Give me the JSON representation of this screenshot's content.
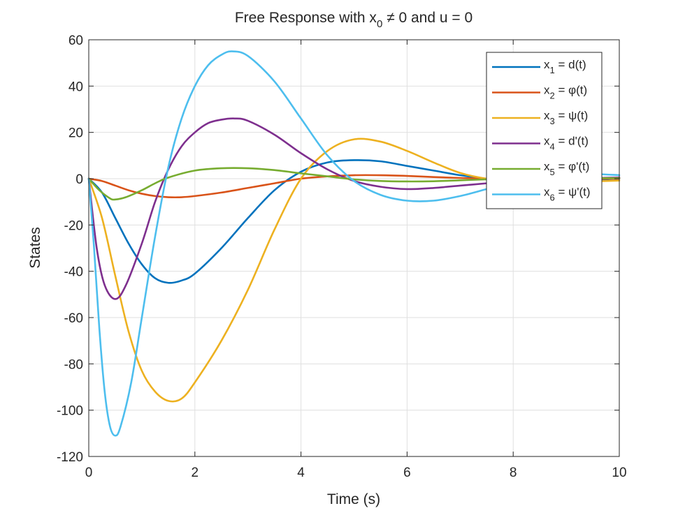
{
  "chart_data": {
    "type": "line",
    "title": {
      "prefix": "Free Response with x",
      "sub": "0",
      "suffix": " ≠ 0 and u = 0"
    },
    "xlabel": "Time (s)",
    "ylabel": "States",
    "xlim": [
      0,
      10
    ],
    "ylim": [
      -120,
      60
    ],
    "xticks": [
      0,
      2,
      4,
      6,
      8,
      10
    ],
    "yticks": [
      -120,
      -100,
      -80,
      -60,
      -40,
      -20,
      0,
      20,
      40,
      60
    ],
    "xtick_labels": [
      "0",
      "2",
      "4",
      "6",
      "8",
      "10"
    ],
    "ytick_labels": [
      "-120",
      "-100",
      "-80",
      "-60",
      "-40",
      "-20",
      "0",
      "20",
      "40",
      "60"
    ],
    "grid": true,
    "legend_position": "top-right",
    "series": [
      {
        "name": "x1 = d(t)",
        "label": {
          "base": "x",
          "sub": "1",
          "rest": " = d(t)"
        },
        "color": "#0072BD",
        "points": [
          [
            0,
            0
          ],
          [
            0.25,
            -6
          ],
          [
            0.5,
            -17
          ],
          [
            0.75,
            -28
          ],
          [
            1.0,
            -37
          ],
          [
            1.25,
            -43
          ],
          [
            1.5,
            -45
          ],
          [
            1.75,
            -44
          ],
          [
            2.0,
            -41
          ],
          [
            2.5,
            -30
          ],
          [
            3.0,
            -17
          ],
          [
            3.5,
            -5
          ],
          [
            4.0,
            3
          ],
          [
            4.5,
            7
          ],
          [
            5.0,
            8
          ],
          [
            5.5,
            7.5
          ],
          [
            6.0,
            5.5
          ],
          [
            6.5,
            3.5
          ],
          [
            7.0,
            1.5
          ],
          [
            7.5,
            0
          ],
          [
            8.0,
            -0.8
          ],
          [
            8.5,
            -1.2
          ],
          [
            9.0,
            -1
          ],
          [
            9.5,
            -0.5
          ],
          [
            10.0,
            0
          ]
        ]
      },
      {
        "name": "x2 = φ(t)",
        "label": {
          "base": "x",
          "sub": "2",
          "rest": " = φ(t)"
        },
        "color": "#D95319",
        "points": [
          [
            0,
            0
          ],
          [
            0.25,
            -1
          ],
          [
            0.5,
            -3
          ],
          [
            0.75,
            -5
          ],
          [
            1.0,
            -6.5
          ],
          [
            1.25,
            -7.5
          ],
          [
            1.5,
            -8
          ],
          [
            1.75,
            -8
          ],
          [
            2.0,
            -7.5
          ],
          [
            2.5,
            -6
          ],
          [
            3.0,
            -4
          ],
          [
            3.5,
            -2
          ],
          [
            4.0,
            0
          ],
          [
            4.5,
            1
          ],
          [
            5.0,
            1.5
          ],
          [
            5.5,
            1.5
          ],
          [
            6.0,
            1.2
          ],
          [
            6.5,
            0.7
          ],
          [
            7.0,
            0.3
          ],
          [
            7.5,
            0
          ],
          [
            8.0,
            -0.3
          ],
          [
            8.5,
            -0.4
          ],
          [
            9.0,
            -0.3
          ],
          [
            9.5,
            -0.1
          ],
          [
            10.0,
            0
          ]
        ]
      },
      {
        "name": "x3 = ψ(t)",
        "label": {
          "base": "x",
          "sub": "3",
          "rest": " = ψ(t)"
        },
        "color": "#EDB120",
        "points": [
          [
            0,
            0
          ],
          [
            0.25,
            -17
          ],
          [
            0.5,
            -42
          ],
          [
            0.75,
            -66
          ],
          [
            1.0,
            -83
          ],
          [
            1.25,
            -92
          ],
          [
            1.5,
            -96
          ],
          [
            1.75,
            -95
          ],
          [
            2.0,
            -88
          ],
          [
            2.5,
            -70
          ],
          [
            3.0,
            -48
          ],
          [
            3.5,
            -22
          ],
          [
            4.0,
            0
          ],
          [
            4.5,
            12
          ],
          [
            5.0,
            17
          ],
          [
            5.5,
            16
          ],
          [
            6.0,
            12
          ],
          [
            6.5,
            7
          ],
          [
            7.0,
            2.5
          ],
          [
            7.5,
            0
          ],
          [
            8.0,
            -1
          ],
          [
            8.5,
            -1.5
          ],
          [
            9.0,
            -1.5
          ],
          [
            9.5,
            -1.2
          ],
          [
            10.0,
            -0.8
          ]
        ]
      },
      {
        "name": "x4 = d'(t)",
        "label": {
          "base": "x",
          "sub": "4",
          "rest": " = d'(t)"
        },
        "color": "#7E2F8E",
        "points": [
          [
            0,
            0
          ],
          [
            0.15,
            -30
          ],
          [
            0.3,
            -46
          ],
          [
            0.5,
            -52
          ],
          [
            0.7,
            -46
          ],
          [
            1.0,
            -28
          ],
          [
            1.25,
            -10
          ],
          [
            1.5,
            4
          ],
          [
            1.75,
            14
          ],
          [
            2.0,
            20
          ],
          [
            2.25,
            24
          ],
          [
            2.5,
            25.5
          ],
          [
            2.75,
            26
          ],
          [
            3.0,
            25
          ],
          [
            3.5,
            19
          ],
          [
            4.0,
            11
          ],
          [
            4.5,
            4
          ],
          [
            5.0,
            -1
          ],
          [
            5.5,
            -3.5
          ],
          [
            6.0,
            -4.5
          ],
          [
            6.5,
            -4
          ],
          [
            7.0,
            -3
          ],
          [
            7.5,
            -2
          ],
          [
            8.0,
            -1
          ],
          [
            8.5,
            -0.3
          ],
          [
            9.0,
            0
          ],
          [
            10.0,
            0.5
          ]
        ]
      },
      {
        "name": "x5 = φ'(t)",
        "label": {
          "base": "x",
          "sub": "5",
          "rest": " = φ'(t)"
        },
        "color": "#77AC30",
        "points": [
          [
            0,
            0
          ],
          [
            0.2,
            -5
          ],
          [
            0.4,
            -8.5
          ],
          [
            0.5,
            -9
          ],
          [
            0.7,
            -8
          ],
          [
            1.0,
            -5
          ],
          [
            1.25,
            -2
          ],
          [
            1.5,
            0.5
          ],
          [
            2.0,
            3.5
          ],
          [
            2.5,
            4.5
          ],
          [
            3.0,
            4.5
          ],
          [
            3.5,
            3.7
          ],
          [
            4.0,
            2.3
          ],
          [
            4.5,
            1
          ],
          [
            5.0,
            -0.3
          ],
          [
            5.5,
            -1
          ],
          [
            6.0,
            -1.2
          ],
          [
            6.5,
            -1.1
          ],
          [
            7.0,
            -0.7
          ],
          [
            7.5,
            -0.3
          ],
          [
            8.0,
            0
          ],
          [
            8.5,
            0.2
          ],
          [
            9.0,
            0.3
          ],
          [
            10.0,
            0.2
          ]
        ]
      },
      {
        "name": "x6 = ψ'(t)",
        "label": {
          "base": "x",
          "sub": "6",
          "rest": " = ψ'(t)"
        },
        "color": "#4DBEEE",
        "points": [
          [
            0,
            0
          ],
          [
            0.1,
            -30
          ],
          [
            0.2,
            -65
          ],
          [
            0.3,
            -92
          ],
          [
            0.4,
            -107
          ],
          [
            0.5,
            -111
          ],
          [
            0.6,
            -107
          ],
          [
            0.8,
            -88
          ],
          [
            1.0,
            -60
          ],
          [
            1.25,
            -25
          ],
          [
            1.5,
            5
          ],
          [
            1.75,
            26
          ],
          [
            2.0,
            40
          ],
          [
            2.25,
            49
          ],
          [
            2.5,
            53.5
          ],
          [
            2.7,
            55
          ],
          [
            3.0,
            53
          ],
          [
            3.5,
            42
          ],
          [
            4.0,
            26
          ],
          [
            4.5,
            10
          ],
          [
            5.0,
            -1
          ],
          [
            5.5,
            -7
          ],
          [
            6.0,
            -9.5
          ],
          [
            6.5,
            -9.5
          ],
          [
            7.0,
            -7.5
          ],
          [
            7.5,
            -4.5
          ],
          [
            8.0,
            -1.5
          ],
          [
            8.5,
            0.5
          ],
          [
            9.0,
            1.5
          ],
          [
            9.5,
            2
          ],
          [
            10.0,
            1.5
          ]
        ]
      }
    ]
  }
}
